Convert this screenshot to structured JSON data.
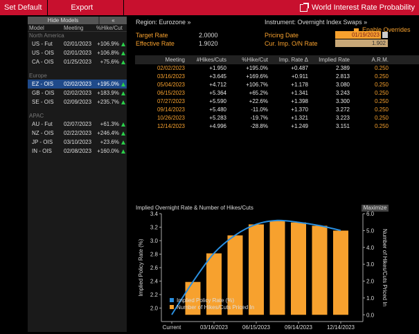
{
  "toolbar": {
    "set_default": "Set Default",
    "export": "Export",
    "title": "World Interest Rate Probability"
  },
  "models": {
    "hide_label": "Hide Models",
    "collapse_label": "«",
    "col_model": "Model",
    "col_meeting": "Meeting",
    "col_pct": "%Hike/Cut",
    "groups": [
      {
        "label": "North America",
        "rows": [
          {
            "model": "US - Fut",
            "meeting": "02/01/2023",
            "pct": "+106.9%"
          },
          {
            "model": "US - OIS",
            "meeting": "02/01/2023",
            "pct": "+106.8%"
          },
          {
            "model": "CA - OIS",
            "meeting": "01/25/2023",
            "pct": "+75.6%"
          }
        ]
      },
      {
        "label": "Europe",
        "rows": [
          {
            "model": "EZ - OIS",
            "meeting": "02/02/2023",
            "pct": "+195.0%"
          },
          {
            "model": "GB - OIS",
            "meeting": "02/02/2023",
            "pct": "+183.9%"
          },
          {
            "model": "SE - OIS",
            "meeting": "02/09/2023",
            "pct": "+235.7%"
          }
        ]
      },
      {
        "label": "APAC",
        "rows": [
          {
            "model": "AU - Fut",
            "meeting": "02/07/2023",
            "pct": "+61.3%"
          },
          {
            "model": "NZ - OIS",
            "meeting": "02/22/2023",
            "pct": "+246.4%"
          },
          {
            "model": "JP - OIS",
            "meeting": "03/10/2023",
            "pct": "+23.6%"
          },
          {
            "model": "IN - OIS",
            "meeting": "02/08/2023",
            "pct": "+160.0%"
          }
        ]
      }
    ]
  },
  "info": {
    "region": "Region: Eurozone »",
    "instrument": "Instrument: Overnight Index Swaps »",
    "enable_overrides": "Enable Overrides",
    "target_rate_label": "Target Rate",
    "target_rate": "2.0000",
    "effective_rate_label": "Effective Rate",
    "effective_rate": "1.9020",
    "pricing_date_label": "Pricing Date",
    "pricing_date": "01/19/2023",
    "cur_imp_label": "Cur. Imp. O/N Rate",
    "cur_imp": "1.902"
  },
  "table": {
    "headers": [
      "Meeting",
      "#Hikes/Cuts",
      "%Hike/Cut",
      "Imp. Rate Δ",
      "Implied Rate",
      "A.R.M."
    ],
    "rows": [
      [
        "02/02/2023",
        "+1.950",
        "+195.0%",
        "+0.487",
        "2.389",
        "0.250"
      ],
      [
        "03/16/2023",
        "+3.645",
        "+169.6%",
        "+0.911",
        "2.813",
        "0.250"
      ],
      [
        "05/04/2023",
        "+4.712",
        "+106.7%",
        "+1.178",
        "3.080",
        "0.250"
      ],
      [
        "06/15/2023",
        "+5.364",
        "+65.2%",
        "+1.341",
        "3.243",
        "0.250"
      ],
      [
        "07/27/2023",
        "+5.590",
        "+22.6%",
        "+1.398",
        "3.300",
        "0.250"
      ],
      [
        "09/14/2023",
        "+5.480",
        "-11.0%",
        "+1.370",
        "3.272",
        "0.250"
      ],
      [
        "10/26/2023",
        "+5.283",
        "-19.7%",
        "+1.321",
        "3.223",
        "0.250"
      ],
      [
        "12/14/2023",
        "+4.996",
        "-28.8%",
        "+1.249",
        "3.151",
        "0.250"
      ]
    ]
  },
  "chart": {
    "title": "Implied Overnight Rate & Number of Hikes/Cuts",
    "maximize": "Maximize"
  },
  "colors": {
    "brand_red": "#c8102e",
    "orange": "#f7a12e",
    "line_blue": "#2a8fe0",
    "up_green": "#2bd04a",
    "selected_row": "#1f4a8a"
  },
  "chart_data": {
    "type": "bar",
    "title": "Implied Overnight Rate & Number of Hikes/Cuts",
    "xlabel": "",
    "ylabel": "Implied Policy Rate (%)",
    "y2label": "Number of Hikes/Cuts Priced In",
    "x_ticks": [
      "Current",
      "03/16/2023",
      "06/15/2023",
      "09/14/2023",
      "12/14/2023"
    ],
    "ylim": [
      1.8,
      3.4
    ],
    "y2lim": [
      -0.4,
      6.0
    ],
    "categories": [
      "Current",
      "02/02/2023",
      "03/16/2023",
      "05/04/2023",
      "06/15/2023",
      "07/27/2023",
      "09/14/2023",
      "10/26/2023",
      "12/14/2023"
    ],
    "series": [
      {
        "name": "Implied Policy Rate (%)",
        "type": "line",
        "axis": "left",
        "values": [
          1.902,
          2.389,
          2.813,
          3.08,
          3.243,
          3.3,
          3.272,
          3.223,
          3.151
        ]
      },
      {
        "name": "Number of Hikes/Cuts Priced In",
        "type": "bar",
        "axis": "right",
        "values": [
          null,
          1.95,
          3.645,
          4.712,
          5.364,
          5.59,
          5.48,
          5.283,
          4.996
        ]
      }
    ],
    "legend": "bottom-left",
    "grid": false
  }
}
